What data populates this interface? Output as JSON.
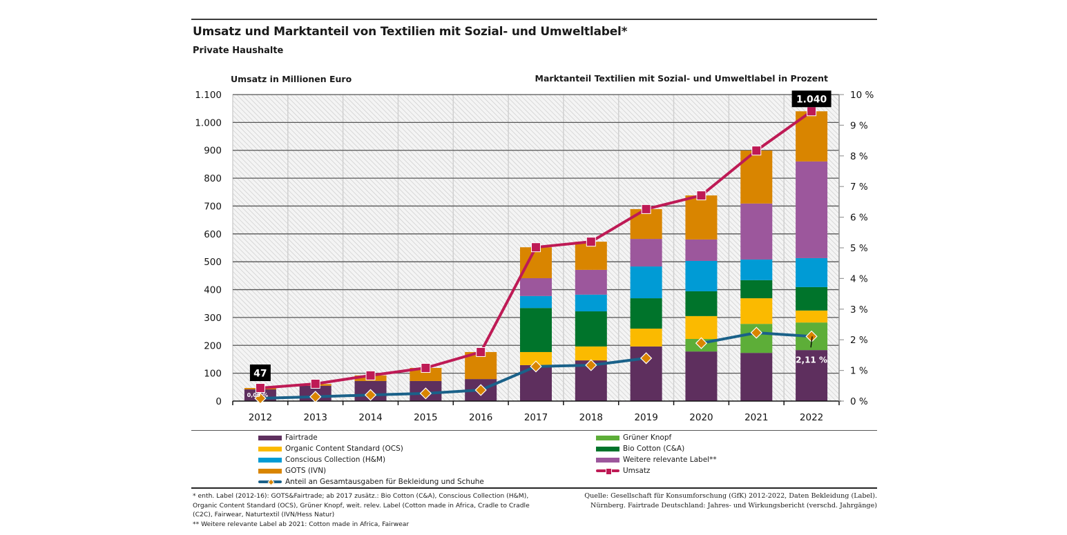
{
  "header": {
    "title": "Umsatz und Marktanteil von Textilien mit Sozial- und Umweltlabel*",
    "subtitle": "Private Haushalte"
  },
  "chart_data": {
    "type": "bar",
    "stacked": true,
    "title": "Umsatz und Marktanteil von Textilien mit Sozial- und Umweltlabel*",
    "subtitle": "Private Haushalte",
    "ylabel": "Umsatz in Millionen Euro",
    "y2label": "Marktanteil Textilien mit Sozial- und Umweltlabel in Prozent",
    "ylim": [
      0,
      1100
    ],
    "y2lim": [
      0,
      10
    ],
    "yticks": [
      0,
      100,
      200,
      300,
      400,
      500,
      600,
      700,
      800,
      900,
      1000,
      1100
    ],
    "ytick_labels": [
      "0",
      "100",
      "200",
      "300",
      "400",
      "500",
      "600",
      "700",
      "800",
      "900",
      "1.000",
      "1.100"
    ],
    "y2ticks": [
      0,
      1,
      2,
      3,
      4,
      5,
      6,
      7,
      8,
      9,
      10
    ],
    "y2tick_labels": [
      "0 %",
      "1 %",
      "2 %",
      "3 %",
      "4 %",
      "5 %",
      "6 %",
      "7 %",
      "8 %",
      "9 %",
      "10 %"
    ],
    "grid": true,
    "categories": [
      "2012",
      "2013",
      "2014",
      "2015",
      "2016",
      "2017",
      "2018",
      "2019",
      "2020",
      "2021",
      "2022"
    ],
    "series": [
      {
        "name": "Fairtrade",
        "color": "#5e2f5e",
        "values": [
          42,
          55,
          72,
          72,
          79,
          129,
          146,
          196,
          178,
          173,
          183
        ]
      },
      {
        "name": "Grüner Knopf",
        "color": "#5dae38",
        "values": [
          0,
          0,
          0,
          0,
          0,
          0,
          0,
          0,
          45,
          104,
          99
        ]
      },
      {
        "name": "Organic Content Standard (OCS)",
        "color": "#fbba00",
        "values": [
          0,
          0,
          0,
          0,
          0,
          47,
          50,
          64,
          82,
          92,
          43
        ]
      },
      {
        "name": "Bio Cotton (C&A)",
        "color": "#00742b",
        "values": [
          0,
          0,
          0,
          0,
          0,
          158,
          126,
          109,
          89,
          65,
          84
        ]
      },
      {
        "name": "Conscious Collection (H&M)",
        "color": "#009bd5",
        "values": [
          0,
          0,
          0,
          0,
          0,
          43,
          60,
          114,
          109,
          74,
          104
        ]
      },
      {
        "name": "Weitere relevante Label**",
        "color": "#9c579c",
        "values": [
          0,
          0,
          0,
          0,
          0,
          64,
          89,
          99,
          77,
          201,
          347
        ]
      },
      {
        "name": "GOTS (IVN)",
        "color": "#d98500",
        "values": [
          5,
          6,
          20,
          47,
          97,
          111,
          101,
          107,
          158,
          190,
          180
        ]
      }
    ],
    "lines": [
      {
        "name": "Umsatz",
        "axis": "left",
        "color": "#be1a55",
        "marker": "square",
        "values": [
          47,
          62,
          92,
          119,
          176,
          552,
          572,
          689,
          738,
          899,
          1040
        ]
      },
      {
        "name": "Anteil an Gesamtausgaben für Bekleidung und Schuhe",
        "axis": "right",
        "color": "#1a6189",
        "marker": "diamond",
        "marker_color": "#d98500",
        "values": [
          0.09,
          0.14,
          0.2,
          0.25,
          0.36,
          1.13,
          1.17,
          1.4,
          1.89,
          2.23,
          2.11
        ],
        "break_after": "2019"
      }
    ],
    "annotations": [
      {
        "text": "47",
        "category": "2012",
        "style": "black-box"
      },
      {
        "text": "1.040",
        "category": "2022",
        "style": "black-box"
      },
      {
        "text": "0,09 %",
        "category": "2012",
        "style": "white-text"
      },
      {
        "text": "2,11 %",
        "category": "2022",
        "style": "white-text"
      }
    ],
    "legend_position": "bottom"
  },
  "legend": {
    "left": [
      {
        "label": "Fairtrade",
        "type": "bar",
        "color": "#5e2f5e"
      },
      {
        "label": "Organic Content Standard (OCS)",
        "type": "bar",
        "color": "#fbba00"
      },
      {
        "label": "Conscious Collection (H&M)",
        "type": "bar",
        "color": "#009bd5"
      },
      {
        "label": "GOTS (IVN)",
        "type": "bar",
        "color": "#d98500"
      },
      {
        "label": "Anteil an Gesamtausgaben für Bekleidung und Schuhe",
        "type": "line-diamond",
        "color": "#1a6189"
      }
    ],
    "right": [
      {
        "label": "Grüner Knopf",
        "type": "bar",
        "color": "#5dae38"
      },
      {
        "label": "Bio Cotton (C&A)",
        "type": "bar",
        "color": "#00742b"
      },
      {
        "label": "Weitere relevante Label**",
        "type": "bar",
        "color": "#9c579c"
      },
      {
        "label": "Umsatz",
        "type": "line-square",
        "color": "#be1a55"
      }
    ]
  },
  "footnote": {
    "line1": "* enth. Label (2012-16): GOTS&Fairtrade; ab 2017 zusätz.: Bio Cotton (C&A), Conscious Collection (H&M),",
    "line2": "Organic Content Standard (OCS), Grüner Knopf, weit. relev. Label (Cotton made in Africa, Cradle to Cradle",
    "line3": "(C2C), Fairwear, Naturtextil (IVN/Hess Natur)",
    "line4": "** Weitere relevante Label ab 2021: Cotton made in Africa, Fairwear"
  },
  "source": {
    "line1": "Quelle: Gesellschaft für Konsumforschung (GfK) 2012-2022, Daten Bekleidung (Label).",
    "line2": "Nürnberg. Fairtrade Deutschland: Jahres- und Wirkungsbericht (verschd. Jahrgänge)"
  }
}
